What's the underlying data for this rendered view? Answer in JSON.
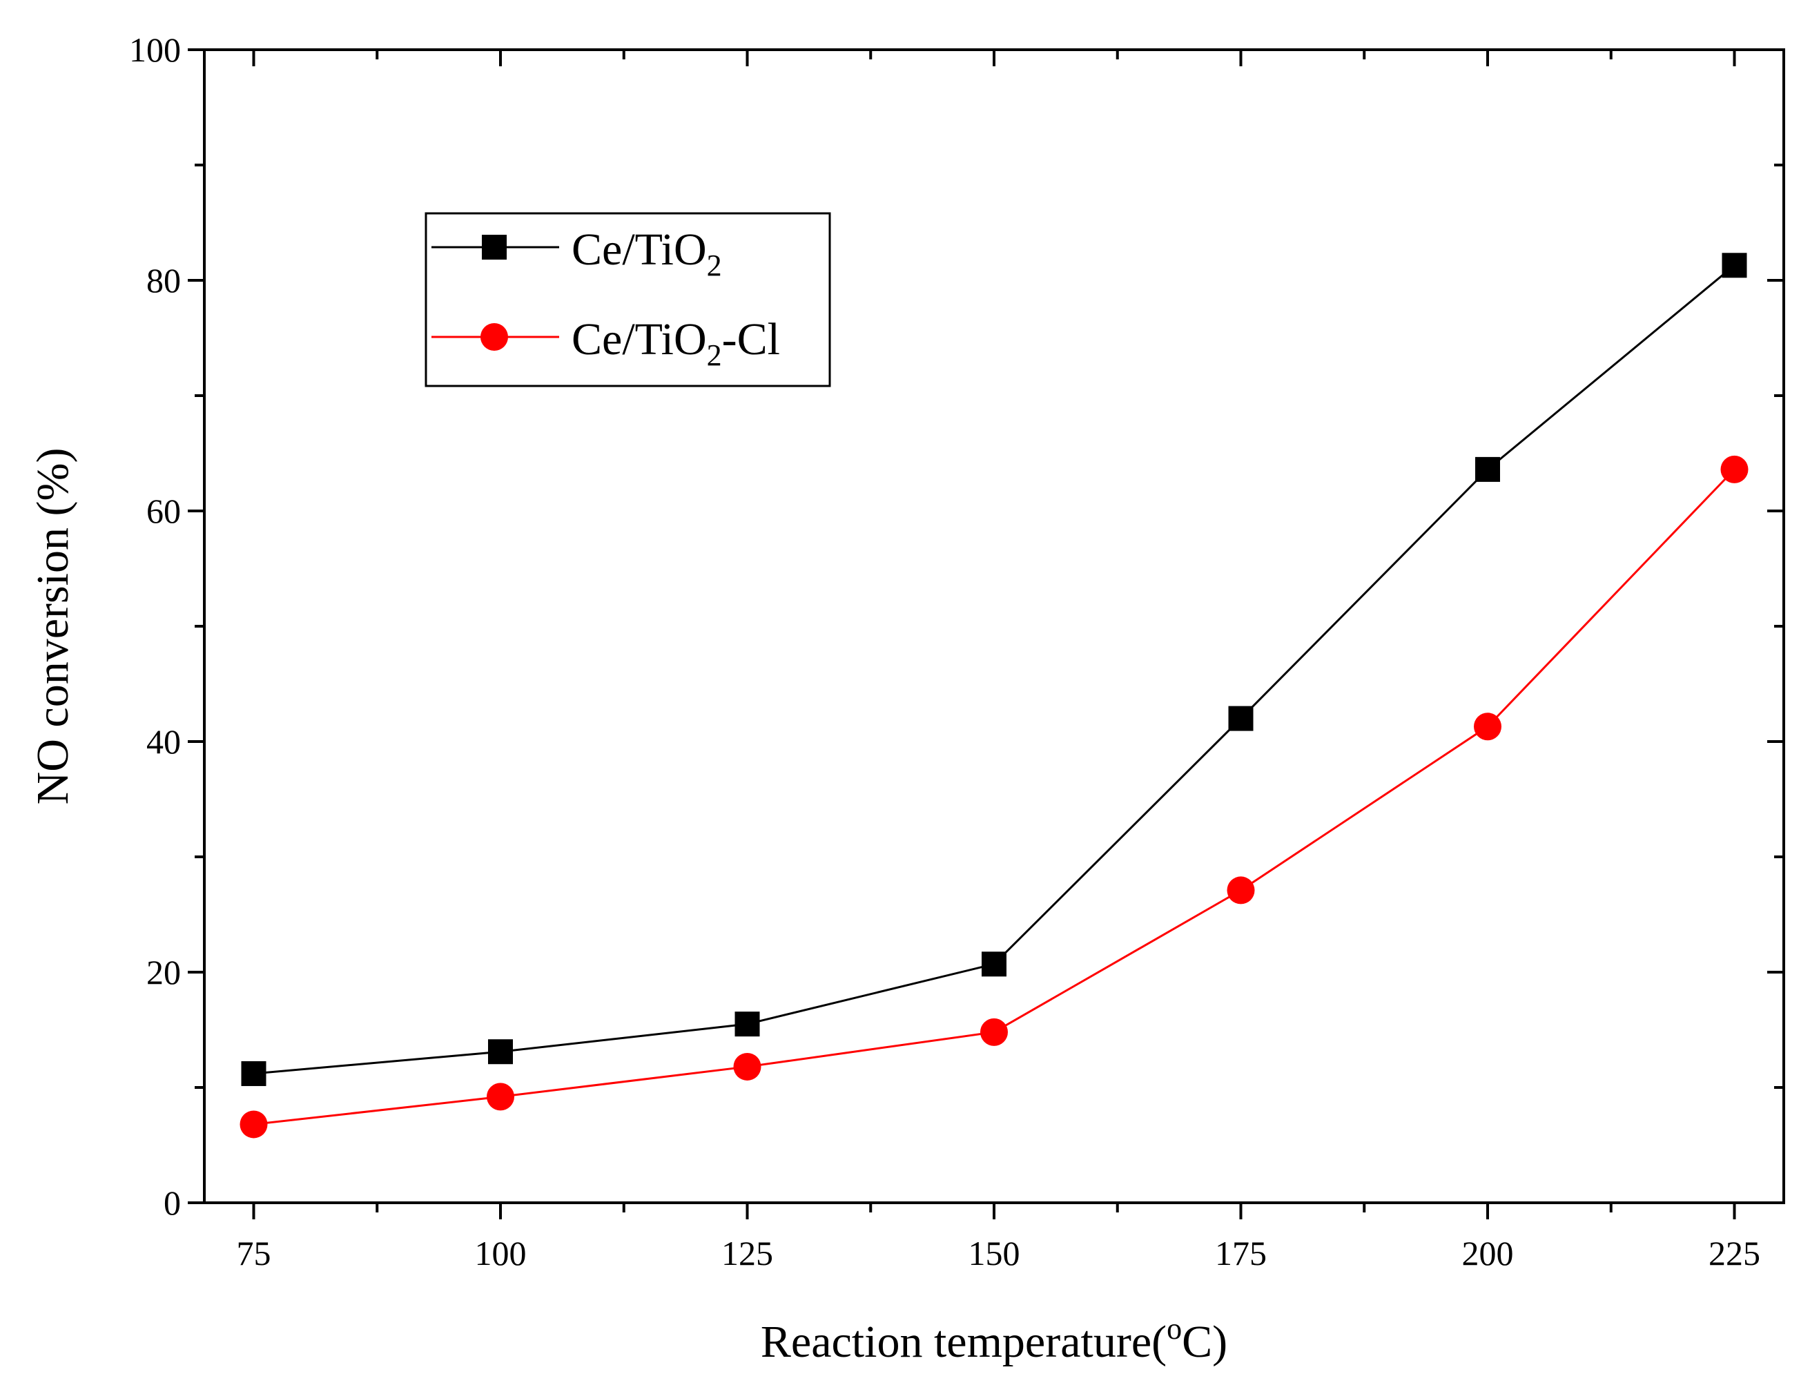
{
  "chart_data": {
    "type": "line",
    "title": "",
    "xlabel": "Reaction temperature(",
    "xlabel_unit_sup": "o",
    "xlabel_unit_tail": "C)",
    "ylabel": "NO conversion (%)",
    "x": [
      75,
      100,
      125,
      150,
      175,
      200,
      225
    ],
    "xticks": [
      "75",
      "100",
      "125",
      "150",
      "175",
      "200",
      "225"
    ],
    "xlim": [
      70,
      230
    ],
    "ylim": [
      0,
      100
    ],
    "yticks": [
      "0",
      "20",
      "40",
      "60",
      "80",
      "100"
    ],
    "grid": false,
    "legend_position": "top-left",
    "series": [
      {
        "name": "Ce/TiO2",
        "legend_main": "Ce/TiO",
        "legend_sub": "2",
        "legend_tail": "",
        "color": "#000000",
        "marker": "square",
        "values": [
          11.2,
          13.1,
          15.5,
          20.7,
          42.0,
          63.6,
          81.3
        ]
      },
      {
        "name": "Ce/TiO2-Cl",
        "legend_main": "Ce/TiO",
        "legend_sub": "2",
        "legend_tail": "-Cl",
        "color": "#ff0000",
        "marker": "circle",
        "values": [
          6.8,
          9.2,
          11.8,
          14.8,
          27.1,
          41.3,
          63.6
        ]
      }
    ]
  }
}
